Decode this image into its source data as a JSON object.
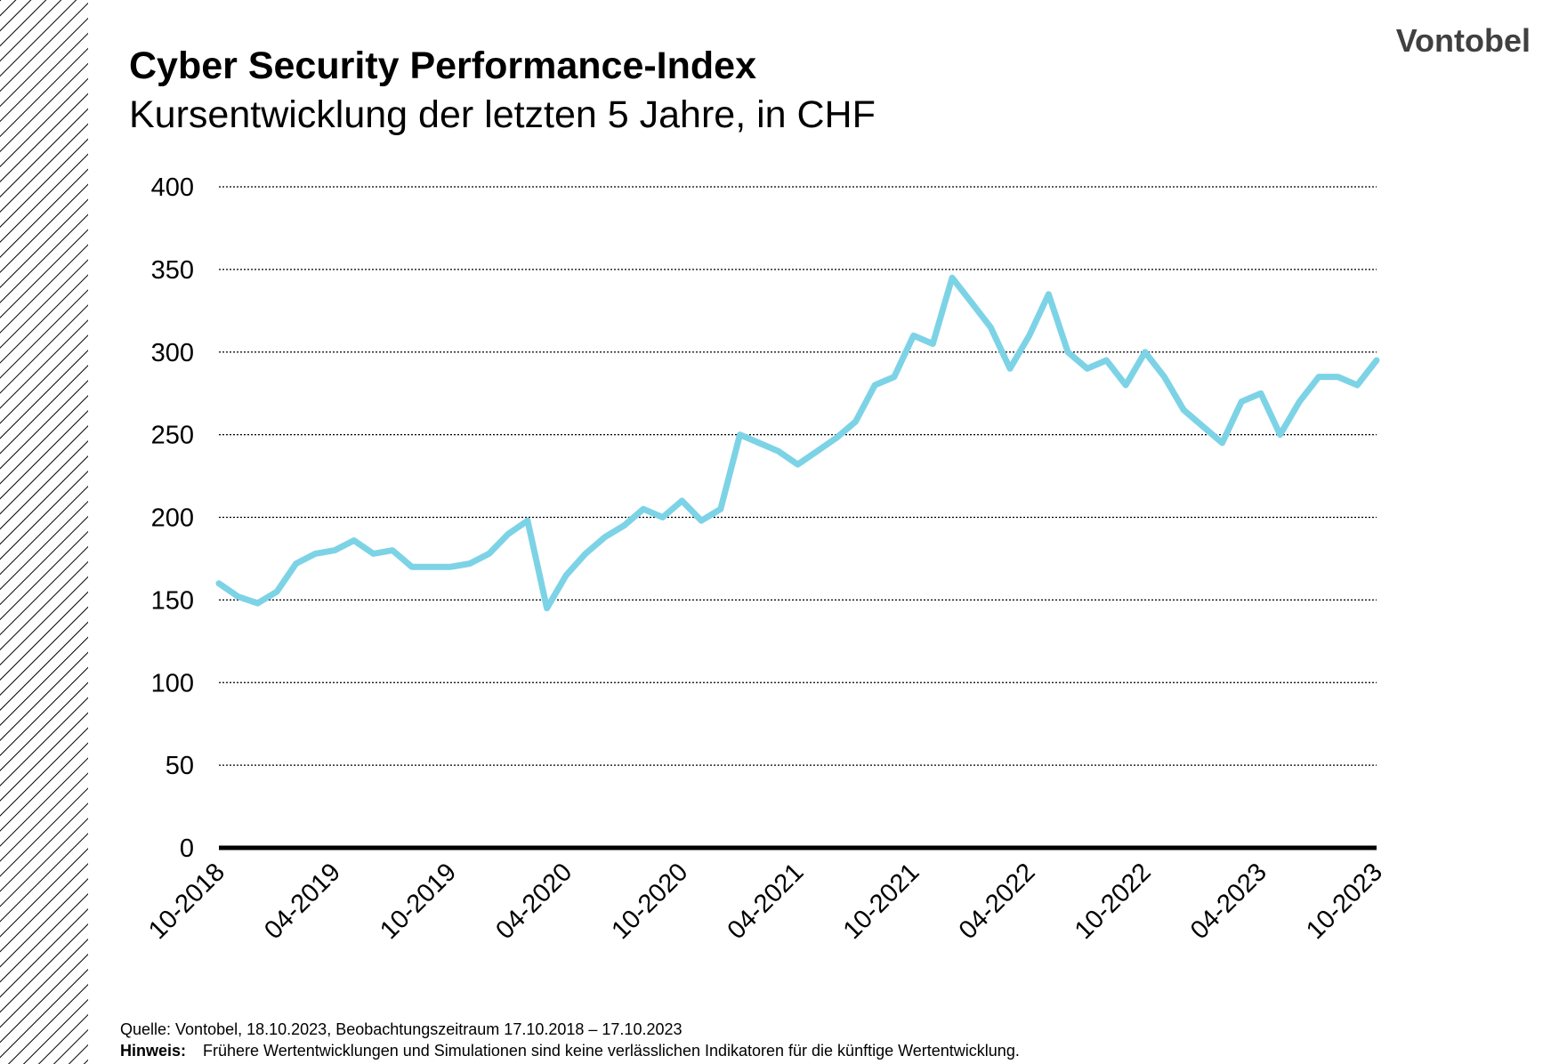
{
  "chart_data": {
    "type": "line",
    "title": "Cyber Security Performance-Index",
    "subtitle": "Kursentwicklung der letzten 5 Jahre, in CHF",
    "logo": "Vontobel",
    "source": "Quelle: Vontobel, 18.10.2023, Beobachtungszeitraum 17.10.2018 – 17.10.2023",
    "note_label": "Hinweis:",
    "note": "Frühere Wertentwicklungen und Simulationen sind keine verlässlichen Indikatoren für die künftige Wertentwicklung.",
    "x": [
      "10-2018",
      "11-2018",
      "12-2018",
      "01-2019",
      "02-2019",
      "03-2019",
      "04-2019",
      "05-2019",
      "06-2019",
      "07-2019",
      "08-2019",
      "09-2019",
      "10-2019",
      "11-2019",
      "12-2019",
      "01-2020",
      "02-2020",
      "03-2020",
      "04-2020",
      "05-2020",
      "06-2020",
      "07-2020",
      "08-2020",
      "09-2020",
      "10-2020",
      "11-2020",
      "12-2020",
      "01-2021",
      "02-2021",
      "03-2021",
      "04-2021",
      "05-2021",
      "06-2021",
      "07-2021",
      "08-2021",
      "09-2021",
      "10-2021",
      "11-2021",
      "12-2021",
      "01-2022",
      "02-2022",
      "03-2022",
      "04-2022",
      "05-2022",
      "06-2022",
      "07-2022",
      "08-2022",
      "09-2022",
      "10-2022",
      "11-2022",
      "12-2022",
      "01-2023",
      "02-2023",
      "03-2023",
      "04-2023",
      "05-2023",
      "06-2023",
      "07-2023",
      "08-2023",
      "09-2023",
      "10-2023"
    ],
    "series": [
      {
        "name": "Cyber Security Performance-Index",
        "color": "#7dd3e6",
        "values": [
          160,
          152,
          148,
          155,
          172,
          178,
          180,
          186,
          178,
          180,
          170,
          170,
          170,
          172,
          178,
          190,
          198,
          145,
          165,
          178,
          188,
          195,
          205,
          200,
          210,
          198,
          205,
          250,
          245,
          240,
          232,
          240,
          248,
          258,
          280,
          285,
          310,
          305,
          345,
          330,
          315,
          290,
          310,
          335,
          300,
          290,
          295,
          280,
          300,
          285,
          265,
          255,
          245,
          270,
          275,
          250,
          270,
          285,
          285,
          280,
          295
        ]
      }
    ],
    "xticks": [
      "10-2018",
      "04-2019",
      "10-2019",
      "04-2020",
      "10-2020",
      "04-2021",
      "10-2021",
      "04-2022",
      "10-2022",
      "04-2023",
      "10-2023"
    ],
    "ylim": [
      0,
      400
    ],
    "yticks": [
      0,
      50,
      100,
      150,
      200,
      250,
      300,
      350,
      400
    ],
    "grid": true
  }
}
